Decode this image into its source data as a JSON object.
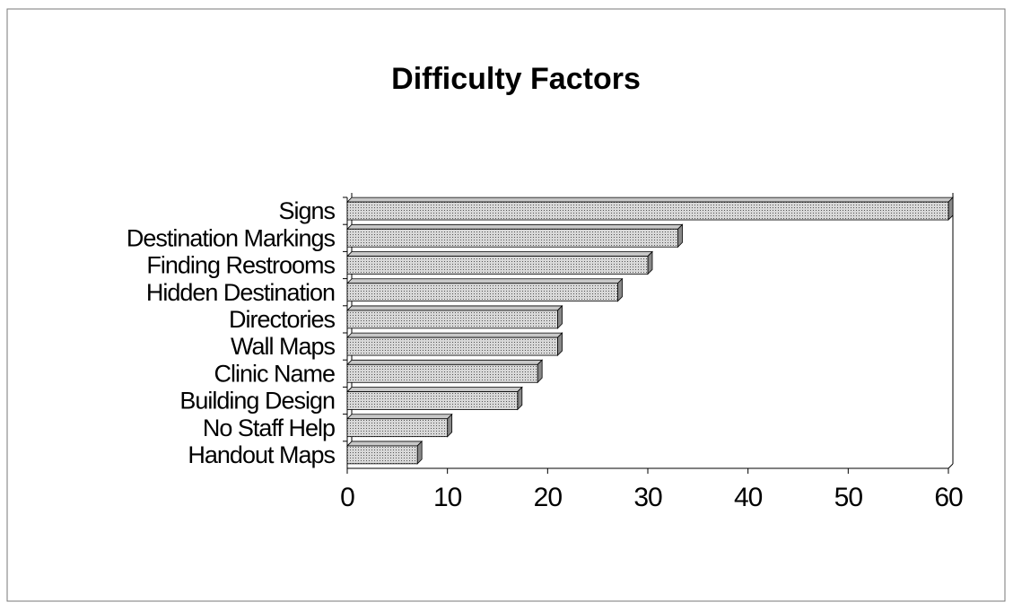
{
  "chart_data": {
    "type": "bar",
    "orientation": "horizontal",
    "title": "Difficulty Factors",
    "categories": [
      "Signs",
      "Destination Markings",
      "Finding Restrooms",
      "Hidden Destination",
      "Directories",
      "Wall Maps",
      "Clinic Name",
      "Building Design",
      "No Staff Help",
      "Handout Maps"
    ],
    "values": [
      60,
      33,
      30,
      27,
      21,
      21,
      19,
      17,
      10,
      7
    ],
    "color": "#c8c8c8",
    "xlim": [
      0,
      60
    ],
    "xticks": [
      0,
      10,
      20,
      30,
      40,
      50,
      60
    ]
  }
}
